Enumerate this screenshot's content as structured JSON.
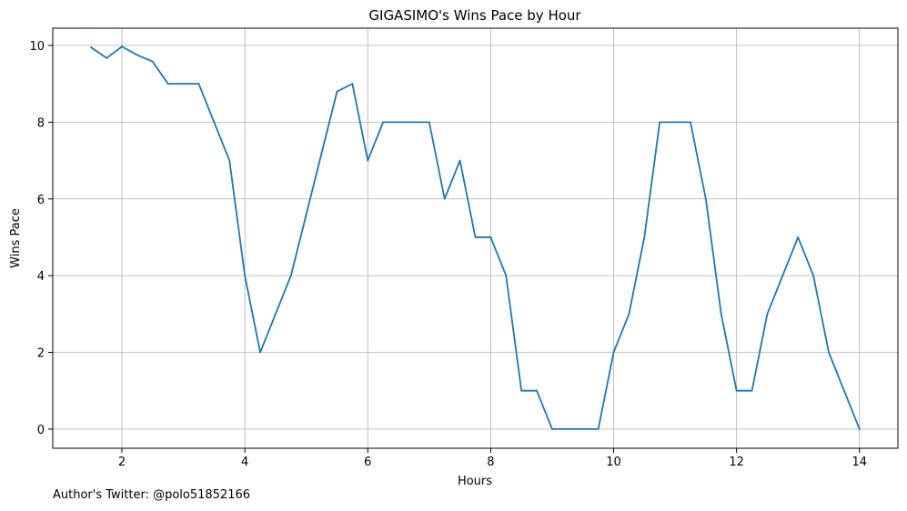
{
  "chart_data": {
    "type": "line",
    "title": "GIGASIMO's Wins Pace by Hour",
    "xlabel": "Hours",
    "ylabel": "Wins Pace",
    "xlim": [
      0.875,
      14.625
    ],
    "ylim": [
      -0.5,
      10.45
    ],
    "xticks": [
      2,
      4,
      6,
      8,
      10,
      12,
      14
    ],
    "yticks": [
      0,
      2,
      4,
      6,
      8,
      10
    ],
    "grid": true,
    "series": [
      {
        "color": "#1f77b4",
        "x": [
          1.5,
          1.75,
          2.0,
          2.25,
          2.5,
          2.75,
          3.0,
          3.25,
          3.5,
          3.75,
          4.0,
          4.25,
          4.5,
          4.75,
          5.0,
          5.25,
          5.5,
          5.75,
          6.0,
          6.25,
          6.5,
          6.75,
          7.0,
          7.25,
          7.5,
          7.75,
          8.0,
          8.25,
          8.5,
          8.75,
          9.0,
          9.25,
          9.5,
          9.75,
          10.0,
          10.25,
          10.5,
          10.75,
          11.0,
          11.25,
          11.5,
          11.75,
          12.0,
          12.25,
          12.5,
          12.75,
          13.0,
          13.25,
          13.5,
          13.75,
          14.0
        ],
        "y": [
          9.95,
          9.67,
          9.97,
          9.75,
          9.58,
          9.0,
          9.0,
          9.0,
          8.0,
          7.0,
          4.0,
          2.0,
          3.0,
          4.0,
          5.6,
          7.2,
          8.8,
          9.0,
          7.0,
          8.0,
          8.0,
          8.0,
          8.0,
          6.0,
          7.0,
          5.0,
          5.0,
          4.0,
          1.0,
          1.0,
          0.0,
          0.0,
          0.0,
          0.0,
          2.0,
          3.0,
          5.0,
          8.0,
          8.0,
          8.0,
          6.0,
          3.0,
          1.0,
          1.0,
          3.0,
          4.0,
          5.0,
          4.0,
          2.0,
          1.0,
          0.0
        ]
      }
    ]
  },
  "footer": {
    "note": "Author's Twitter: @polo51852166"
  }
}
